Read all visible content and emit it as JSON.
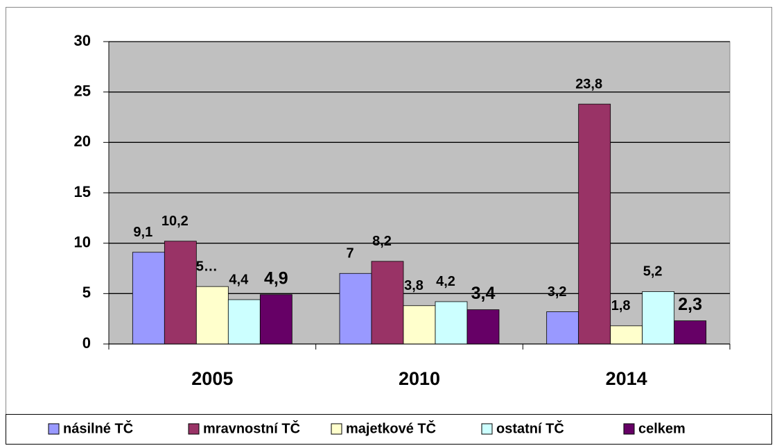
{
  "chart_data": {
    "type": "bar",
    "categories": [
      "2005",
      "2010",
      "2014"
    ],
    "series": [
      {
        "name": "násilné TČ",
        "color": "#9999ff",
        "values": [
          9.1,
          7,
          3.2
        ],
        "value_labels": [
          "9,1",
          "7",
          "3,2"
        ]
      },
      {
        "name": "mravnostní TČ",
        "color": "#993366",
        "values": [
          10.2,
          8.2,
          23.8
        ],
        "value_labels": [
          "10,2",
          "8,2",
          "23,8"
        ]
      },
      {
        "name": "majetkové TČ",
        "color": "#ffffcc",
        "values": [
          5.7,
          3.8,
          1.8
        ],
        "value_labels": [
          "5…",
          "3,8",
          "1,8"
        ]
      },
      {
        "name": "ostatní TČ",
        "color": "#ccffff",
        "values": [
          4.4,
          4.2,
          5.2
        ],
        "value_labels": [
          "4,4",
          "4,2",
          "5,2"
        ]
      },
      {
        "name": "celkem",
        "color": "#660066",
        "values": [
          4.9,
          3.4,
          2.3
        ],
        "value_labels": [
          "4,9",
          "3,4",
          "2,3"
        ]
      }
    ],
    "ylim": [
      0,
      30
    ],
    "yticks": [
      0,
      5,
      10,
      15,
      20,
      25,
      30
    ],
    "grid": true,
    "legend": "bottom",
    "plot_background": "#c0c0c0"
  }
}
